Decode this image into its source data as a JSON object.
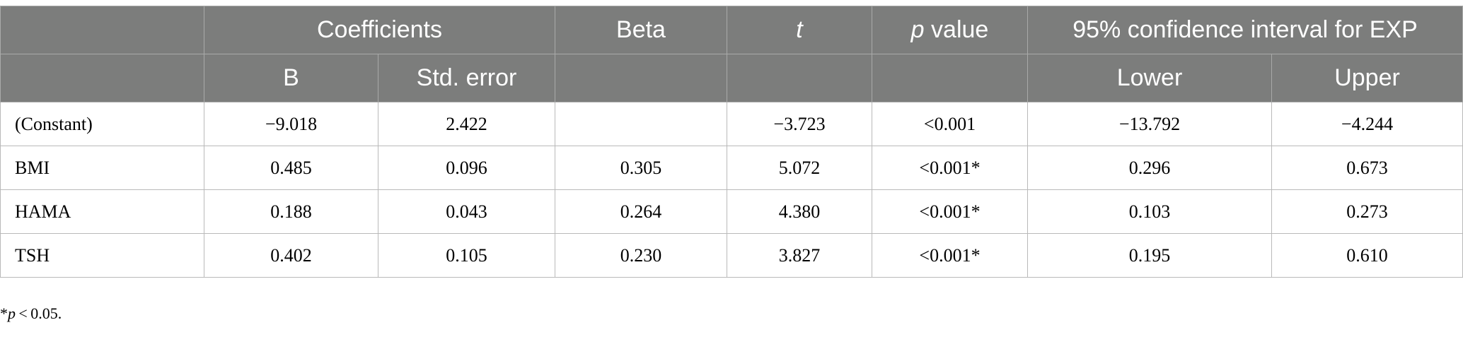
{
  "header": {
    "row1": {
      "blank": "",
      "coefficients": "Coefficients",
      "beta": "Beta",
      "t": "t",
      "p_italic": "p",
      "p_rest": " value",
      "ci": "95% confidence interval for EXP"
    },
    "row2": {
      "blank": "",
      "b": "B",
      "std_error": "Std. error",
      "beta_blank": "",
      "t_blank": "",
      "p_blank": "",
      "lower": "Lower",
      "upper": "Upper"
    }
  },
  "rows": [
    {
      "label": "(Constant)",
      "b": "−9.018",
      "se": "2.422",
      "beta": "",
      "t": "−3.723",
      "p": "<0.001",
      "lower": "−13.792",
      "upper": "−4.244"
    },
    {
      "label": "BMI",
      "b": "0.485",
      "se": "0.096",
      "beta": "0.305",
      "t": "5.072",
      "p": "<0.001*",
      "lower": "0.296",
      "upper": "0.673"
    },
    {
      "label": "HAMA",
      "b": "0.188",
      "se": "0.043",
      "beta": "0.264",
      "t": "4.380",
      "p": "<0.001*",
      "lower": "0.103",
      "upper": "0.273"
    },
    {
      "label": "TSH",
      "b": "0.402",
      "se": "0.105",
      "beta": "0.230",
      "t": "3.827",
      "p": "<0.001*",
      "lower": "0.195",
      "upper": "0.610"
    }
  ],
  "footnote": {
    "star": "*",
    "p_italic": "p",
    "rest": " < 0.05."
  }
}
